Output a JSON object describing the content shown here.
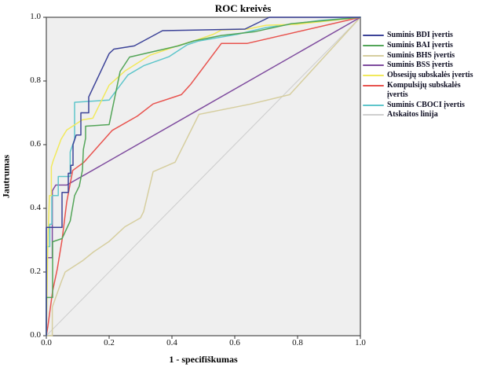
{
  "chart_data": {
    "type": "line",
    "title": "ROC kreivės",
    "xlabel": "1 - specifiškumas",
    "ylabel": "Jautrumas",
    "xlim": [
      0,
      1
    ],
    "ylim": [
      0,
      1
    ],
    "x_ticks": [
      "0.0",
      "0.2",
      "0.4",
      "0.6",
      "0.8",
      "1.0"
    ],
    "y_ticks": [
      "0.0",
      "0.2",
      "0.4",
      "0.6",
      "0.8",
      "1.0"
    ],
    "grid": false,
    "legend_position": "right",
    "plot_background": "#efefef",
    "frame_color": "#595959",
    "series": [
      {
        "name": "Suminis BDI įvertis",
        "color": "#3c4398",
        "points": [
          [
            0,
            0
          ],
          [
            0,
            0.34
          ],
          [
            0.05,
            0.34
          ],
          [
            0.05,
            0.45
          ],
          [
            0.07,
            0.45
          ],
          [
            0.07,
            0.51
          ],
          [
            0.078,
            0.51
          ],
          [
            0.078,
            0.535
          ],
          [
            0.085,
            0.535
          ],
          [
            0.085,
            0.6
          ],
          [
            0.095,
            0.63
          ],
          [
            0.11,
            0.63
          ],
          [
            0.11,
            0.7
          ],
          [
            0.135,
            0.7
          ],
          [
            0.135,
            0.75
          ],
          [
            0.2,
            0.886
          ],
          [
            0.215,
            0.9
          ],
          [
            0.28,
            0.91
          ],
          [
            0.37,
            0.958
          ],
          [
            0.6325,
            0.963
          ],
          [
            0.71,
            1
          ],
          [
            1,
            1
          ]
        ]
      },
      {
        "name": "Suminis BAI įvertis",
        "color": "#53a558",
        "points": [
          [
            0,
            0
          ],
          [
            0,
            0.12
          ],
          [
            0.02,
            0.12
          ],
          [
            0.02,
            0.295
          ],
          [
            0.05,
            0.305
          ],
          [
            0.076,
            0.36
          ],
          [
            0.09,
            0.44
          ],
          [
            0.105,
            0.47
          ],
          [
            0.115,
            0.52
          ],
          [
            0.118,
            0.585
          ],
          [
            0.125,
            0.62
          ],
          [
            0.125,
            0.658
          ],
          [
            0.2,
            0.663
          ],
          [
            0.235,
            0.83
          ],
          [
            0.265,
            0.875
          ],
          [
            0.33,
            0.89
          ],
          [
            0.42,
            0.91
          ],
          [
            0.47,
            0.926
          ],
          [
            0.5575,
            0.943
          ],
          [
            0.665,
            0.955
          ],
          [
            0.78,
            0.98
          ],
          [
            1,
            1
          ]
        ]
      },
      {
        "name": "Suminis BHS įvertis",
        "color": "#d6ce9f",
        "points": [
          [
            0,
            0
          ],
          [
            0.019,
            0
          ],
          [
            0.019,
            0.09
          ],
          [
            0.048,
            0.17
          ],
          [
            0.06,
            0.2
          ],
          [
            0.115,
            0.235
          ],
          [
            0.15,
            0.263
          ],
          [
            0.2,
            0.296
          ],
          [
            0.25,
            0.342
          ],
          [
            0.3,
            0.37
          ],
          [
            0.31,
            0.39
          ],
          [
            0.34,
            0.515
          ],
          [
            0.41,
            0.545
          ],
          [
            0.486,
            0.695
          ],
          [
            0.6525,
            0.728
          ],
          [
            0.775,
            0.757
          ],
          [
            1,
            1
          ]
        ]
      },
      {
        "name": "Suminis BSS įvertis",
        "color": "#7e4b9e",
        "points": [
          [
            0,
            0
          ],
          [
            0,
            0.245
          ],
          [
            0.019,
            0.245
          ],
          [
            0.019,
            0.455
          ],
          [
            0.03,
            0.473
          ],
          [
            0.065,
            0.473
          ],
          [
            1,
            1
          ]
        ]
      },
      {
        "name": "Obsesijų subskalės įvertis",
        "color": "#f1e95c",
        "points": [
          [
            0,
            0
          ],
          [
            0.005,
            0.3
          ],
          [
            0.01,
            0.44
          ],
          [
            0.016,
            0.44
          ],
          [
            0.016,
            0.53
          ],
          [
            0.022,
            0.55
          ],
          [
            0.047,
            0.617
          ],
          [
            0.065,
            0.646
          ],
          [
            0.115,
            0.678
          ],
          [
            0.148,
            0.683
          ],
          [
            0.2,
            0.787
          ],
          [
            0.25,
            0.831
          ],
          [
            0.33,
            0.881
          ],
          [
            0.42,
            0.911
          ],
          [
            0.4825,
            0.93
          ],
          [
            0.5325,
            0.947
          ],
          [
            0.5575,
            0.96
          ],
          [
            0.64,
            0.963
          ],
          [
            0.7,
            0.975
          ],
          [
            0.8,
            0.978
          ],
          [
            1,
            1
          ]
        ]
      },
      {
        "name": "Kompulsijų subskalės įvertis",
        "color": "#e8534e",
        "points": [
          [
            0,
            0
          ],
          [
            0.005,
            0.03
          ],
          [
            0.02,
            0.14
          ],
          [
            0.035,
            0.21
          ],
          [
            0.05,
            0.3
          ],
          [
            0.065,
            0.42
          ],
          [
            0.084,
            0.519
          ],
          [
            0.12,
            0.545
          ],
          [
            0.21,
            0.645
          ],
          [
            0.29,
            0.69
          ],
          [
            0.34,
            0.728
          ],
          [
            0.43,
            0.757
          ],
          [
            0.46,
            0.79
          ],
          [
            0.5575,
            0.918
          ],
          [
            0.64,
            0.918
          ],
          [
            1,
            1
          ]
        ]
      },
      {
        "name": "Suminis CBOCI įvertis",
        "color": "#5fc6cb",
        "points": [
          [
            0,
            0
          ],
          [
            0,
            0.28
          ],
          [
            0.011,
            0.28
          ],
          [
            0.011,
            0.35
          ],
          [
            0.0175,
            0.35
          ],
          [
            0.0175,
            0.44
          ],
          [
            0.038,
            0.44
          ],
          [
            0.038,
            0.5
          ],
          [
            0.076,
            0.5
          ],
          [
            0.076,
            0.577
          ],
          [
            0.09,
            0.617
          ],
          [
            0.09,
            0.733
          ],
          [
            0.2,
            0.74
          ],
          [
            0.26,
            0.819
          ],
          [
            0.31,
            0.848
          ],
          [
            0.39,
            0.876
          ],
          [
            0.4475,
            0.913
          ],
          [
            0.4825,
            0.925
          ],
          [
            0.61,
            0.947
          ],
          [
            0.7,
            0.968
          ],
          [
            0.87,
            0.99
          ],
          [
            1,
            1
          ]
        ]
      },
      {
        "name": "Atskaitos linija",
        "color": "#cfcfcf",
        "points": [
          [
            0,
            0
          ],
          [
            1,
            1
          ]
        ]
      }
    ]
  }
}
